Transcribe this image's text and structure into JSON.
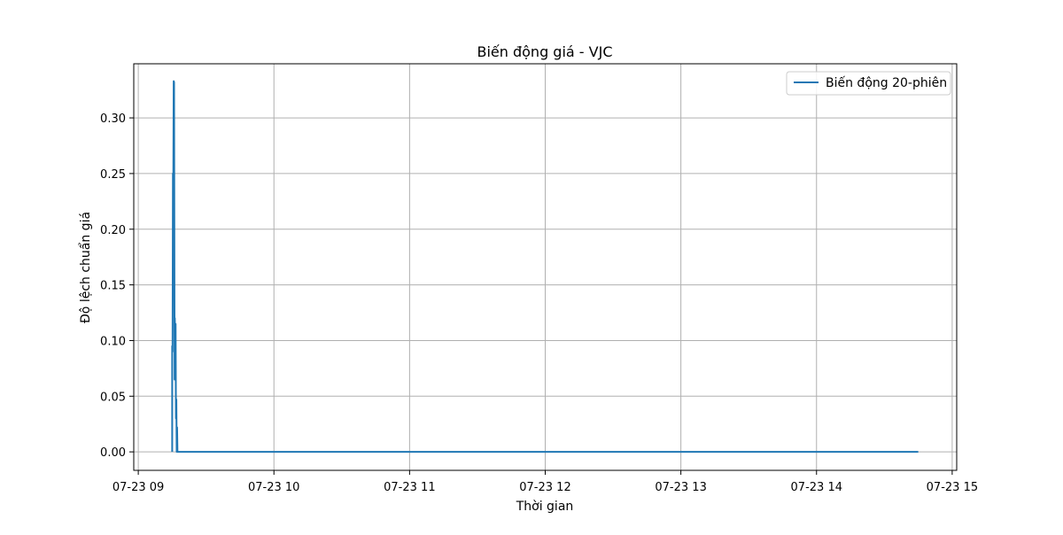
{
  "chart_data": {
    "type": "line",
    "title": "Biến động giá - VJC",
    "xlabel": "Thời gian",
    "ylabel": "Độ lệch chuẩn giá",
    "x_ticks": [
      {
        "label": "07-23 09",
        "time": "2023-07-23T09:00"
      },
      {
        "label": "07-23 10",
        "time": "2023-07-23T10:00"
      },
      {
        "label": "07-23 11",
        "time": "2023-07-23T11:00"
      },
      {
        "label": "07-23 12",
        "time": "2023-07-23T12:00"
      },
      {
        "label": "07-23 13",
        "time": "2023-07-23T13:00"
      },
      {
        "label": "07-23 14",
        "time": "2023-07-23T14:00"
      },
      {
        "label": "07-23 15",
        "time": "2023-07-23T15:00"
      }
    ],
    "y_ticks": [
      "0.00",
      "0.05",
      "0.10",
      "0.15",
      "0.20",
      "0.25",
      "0.30"
    ],
    "y_tick_values": [
      0,
      0.05,
      0.1,
      0.15,
      0.2,
      0.25,
      0.3
    ],
    "xlim": [
      "2023-07-23T08:58",
      "2023-07-23T15:02"
    ],
    "ylim": [
      -0.0166,
      0.3486
    ],
    "grid": true,
    "legend_position": "top-right",
    "series": [
      {
        "name": "Biến động 20-phiên",
        "color": "#1f77b4",
        "points": [
          {
            "t": "2023-07-23T09:15:00",
            "y": 0.0
          },
          {
            "t": "2023-07-23T09:15:00",
            "y": 0.095
          },
          {
            "t": "2023-07-23T09:15:10",
            "y": 0.09
          },
          {
            "t": "2023-07-23T09:15:20",
            "y": 0.25
          },
          {
            "t": "2023-07-23T09:15:30",
            "y": 0.24
          },
          {
            "t": "2023-07-23T09:15:40",
            "y": 0.333
          },
          {
            "t": "2023-07-23T09:15:50",
            "y": 0.332
          },
          {
            "t": "2023-07-23T09:16:00",
            "y": 0.14
          },
          {
            "t": "2023-07-23T09:16:05",
            "y": 0.065
          },
          {
            "t": "2023-07-23T09:16:10",
            "y": 0.12
          },
          {
            "t": "2023-07-23T09:16:20",
            "y": 0.09
          },
          {
            "t": "2023-07-23T09:16:30",
            "y": 0.115
          },
          {
            "t": "2023-07-23T09:16:40",
            "y": 0.03
          },
          {
            "t": "2023-07-23T09:16:50",
            "y": 0.047
          },
          {
            "t": "2023-07-23T09:17:00",
            "y": 0.0
          },
          {
            "t": "2023-07-23T09:17:10",
            "y": 0.022
          },
          {
            "t": "2023-07-23T09:17:20",
            "y": 0.0
          },
          {
            "t": "2023-07-23T09:30:00",
            "y": 0.0
          },
          {
            "t": "2023-07-23T10:00:00",
            "y": 0.0
          },
          {
            "t": "2023-07-23T11:00:00",
            "y": 0.0
          },
          {
            "t": "2023-07-23T12:00:00",
            "y": 0.0
          },
          {
            "t": "2023-07-23T13:00:00",
            "y": 0.0
          },
          {
            "t": "2023-07-23T14:00:00",
            "y": 0.0
          },
          {
            "t": "2023-07-23T14:45:00",
            "y": 0.0
          }
        ]
      }
    ]
  }
}
